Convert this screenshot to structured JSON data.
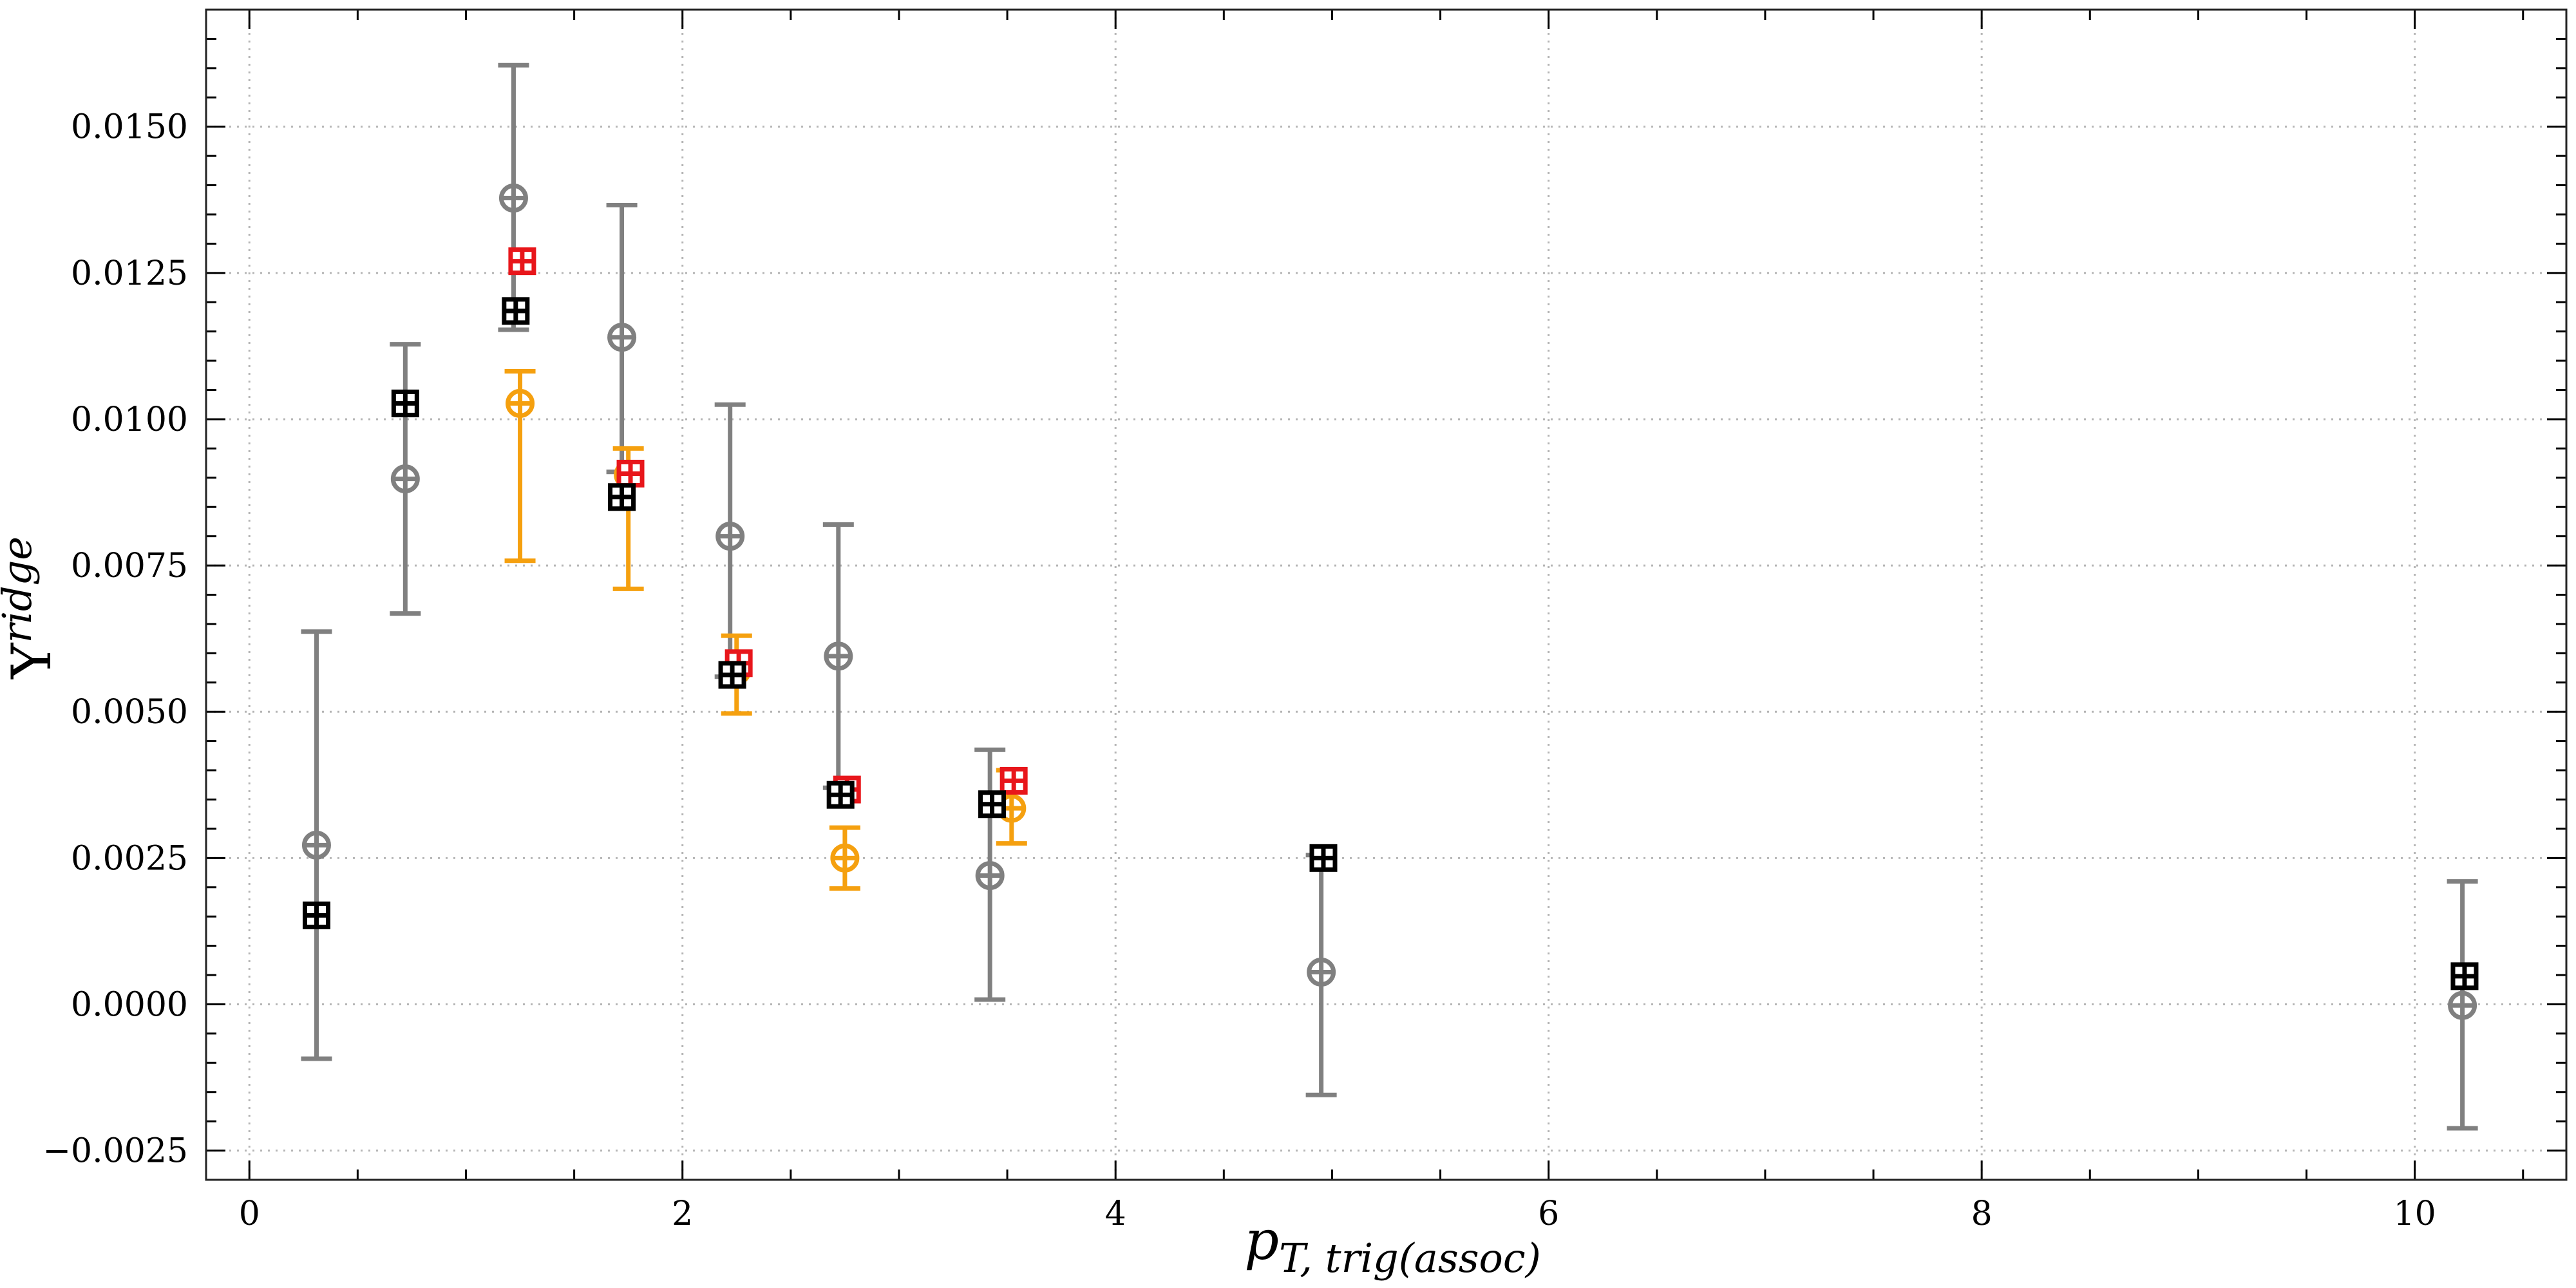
{
  "chart_data": {
    "type": "scatter",
    "xlabel_main": "p",
    "xlabel_sub": "T, trig(assoc)",
    "ylabel_main": "Y",
    "ylabel_sup": "ridge",
    "xlim": [
      -0.2,
      10.7
    ],
    "ylim": [
      -0.003,
      0.017
    ],
    "grid": true,
    "x_ticks": [
      0,
      2,
      4,
      6,
      8,
      10
    ],
    "x_tick_labels": [
      "0",
      "2",
      "4",
      "6",
      "8",
      "10"
    ],
    "y_ticks": [
      -0.0025,
      0.0,
      0.0025,
      0.005,
      0.0075,
      0.01,
      0.0125,
      0.015
    ],
    "y_tick_labels": [
      "−0.0025",
      "0.0000",
      "0.0025",
      "0.0050",
      "0.0075",
      "0.0100",
      "0.0125",
      "0.0150"
    ],
    "series": [
      {
        "marker": "circle-plus",
        "color": "#808080",
        "points": [
          {
            "x": 0.31,
            "y": 0.00272,
            "ylo": -0.00093,
            "yhi": 0.00637
          },
          {
            "x": 0.72,
            "y": 0.00898,
            "ylo": 0.00668,
            "yhi": 0.01128
          },
          {
            "x": 1.22,
            "y": 0.01378,
            "ylo": 0.01153,
            "yhi": 0.01605
          },
          {
            "x": 1.72,
            "y": 0.0114,
            "ylo": 0.0091,
            "yhi": 0.01366
          },
          {
            "x": 2.22,
            "y": 0.008,
            "ylo": 0.0056,
            "yhi": 0.01025
          },
          {
            "x": 2.72,
            "y": 0.00595,
            "ylo": 0.0037,
            "yhi": 0.0082
          },
          {
            "x": 3.42,
            "y": 0.0022,
            "ylo": 8e-05,
            "yhi": 0.00435
          },
          {
            "x": 4.95,
            "y": 0.00055,
            "ylo": -0.00155,
            "yhi": 0.00255
          },
          {
            "x": 10.22,
            "y": -2e-05,
            "ylo": -0.00212,
            "yhi": 0.0021
          }
        ]
      },
      {
        "marker": "circle-plus",
        "color": "#f5a00f",
        "points": [
          {
            "x": 1.25,
            "y": 0.01027,
            "ylo": 0.00758,
            "yhi": 0.01082
          },
          {
            "x": 1.75,
            "y": 0.00905,
            "ylo": 0.0071,
            "yhi": 0.0095
          },
          {
            "x": 2.25,
            "y": 0.0057,
            "ylo": 0.00497,
            "yhi": 0.0063
          },
          {
            "x": 2.75,
            "y": 0.0025,
            "ylo": 0.00198,
            "yhi": 0.00302
          },
          {
            "x": 3.52,
            "y": 0.00335,
            "ylo": 0.00275,
            "yhi": 0.004
          }
        ]
      },
      {
        "marker": "square-plus",
        "color": "#e8161b",
        "points": [
          {
            "x": 1.26,
            "y": 0.0127
          },
          {
            "x": 1.76,
            "y": 0.00907
          },
          {
            "x": 2.26,
            "y": 0.00583
          },
          {
            "x": 2.76,
            "y": 0.00367
          },
          {
            "x": 3.53,
            "y": 0.00382
          }
        ]
      },
      {
        "marker": "square-plus",
        "color": "#000000",
        "points": [
          {
            "x": 0.31,
            "y": 0.00152
          },
          {
            "x": 0.72,
            "y": 0.01027
          },
          {
            "x": 1.23,
            "y": 0.01185
          },
          {
            "x": 1.72,
            "y": 0.00867
          },
          {
            "x": 2.23,
            "y": 0.00563
          },
          {
            "x": 2.73,
            "y": 0.00358
          },
          {
            "x": 3.43,
            "y": 0.00342
          },
          {
            "x": 4.96,
            "y": 0.0025
          },
          {
            "x": 10.23,
            "y": 0.00048
          }
        ]
      }
    ]
  }
}
